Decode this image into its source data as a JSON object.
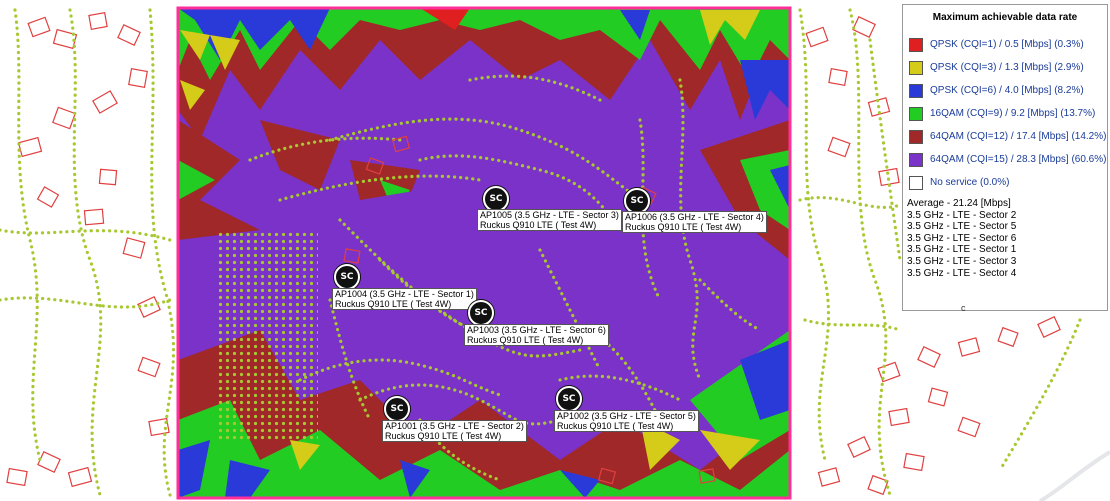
{
  "legend": {
    "title": "Maximum achievable data rate",
    "items": [
      {
        "label": "QPSK (CQI=1) / 0.5 [Mbps] (0.3%)",
        "color": "#e02020"
      },
      {
        "label": "QPSK (CQI=3) / 1.3 [Mbps] (2.9%)",
        "color": "#d4cc18"
      },
      {
        "label": "QPSK (CQI=6) / 4.0 [Mbps] (8.2%)",
        "color": "#2a3ad8"
      },
      {
        "label": "16QAM (CQI=9) / 9.2 [Mbps] (13.7%)",
        "color": "#22cc22"
      },
      {
        "label": "64QAM (CQI=12) / 17.4 [Mbps] (14.2%)",
        "color": "#a02828"
      },
      {
        "label": "64QAM (CQI=15) / 28.3 [Mbps] (60.6%)",
        "color": "#7a32c8"
      },
      {
        "label": "No service (0.0%)",
        "color": "#ffffff"
      }
    ],
    "average": "Average - 21.24 [Mbps]",
    "sectors": [
      "3.5 GHz - LTE - Sector 2",
      "3.5 GHz - LTE - Sector 5",
      "3.5 GHz - LTE - Sector 6",
      "3.5 GHz - LTE - Sector 1",
      "3.5 GHz - LTE - Sector 3",
      "3.5 GHz - LTE - Sector 4"
    ],
    "stray_char": "c"
  },
  "access_points": [
    {
      "icon_text": "SC",
      "line1": "AP1005 (3.5 GHz - LTE - Sector 3)",
      "line2": "Ruckus Q910 LTE ( Test 4W)"
    },
    {
      "icon_text": "SC",
      "line1": "AP1006 (3.5 GHz - LTE - Sector 4)",
      "line2": "Ruckus Q910 LTE ( Test 4W)"
    },
    {
      "icon_text": "SC",
      "line1": "AP1004 (3.5 GHz - LTE - Sector 1)",
      "line2": "Ruckus Q910 LTE ( Test 4W)"
    },
    {
      "icon_text": "SC",
      "line1": "AP1003 (3.5 GHz - LTE - Sector 6)",
      "line2": "Ruckus Q910 LTE ( Test 4W)"
    },
    {
      "icon_text": "SC",
      "line1": "AP1001 (3.5 GHz - LTE - Sector 2)",
      "line2": "Ruckus Q910 LTE ( Test 4W)"
    },
    {
      "icon_text": "SC",
      "line1": "AP1002 (3.5 GHz - LTE - Sector 5)",
      "line2": "Ruckus Q910 LTE ( Test 4W)"
    }
  ]
}
